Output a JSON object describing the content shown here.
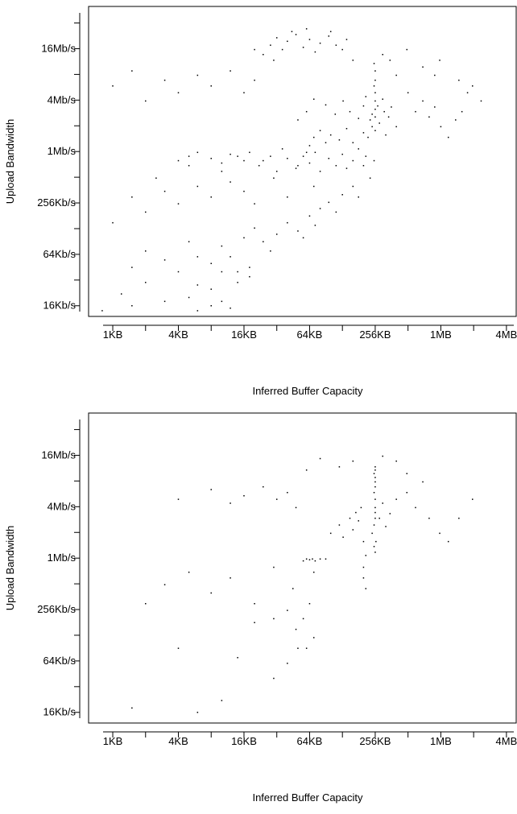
{
  "chart_data": [
    {
      "type": "scatter",
      "title": "",
      "xlabel": "Inferred Buffer Capacity",
      "ylabel": "Upload Bandwidth",
      "x_scale": "log2",
      "y_scale": "log2",
      "x_tick_labels": [
        "1KB",
        "4KB",
        "16KB",
        "64KB",
        "256KB",
        "1MB",
        "4MB"
      ],
      "y_tick_labels": [
        "16Kb/s",
        "64Kb/s",
        "256Kb/s",
        "1Mb/s",
        "4Mb/s",
        "16Mb/s"
      ],
      "xlim_kb": [
        0.6,
        5120
      ],
      "ylim_kbps": [
        12,
        51200
      ],
      "grid": false,
      "point_color": "#000000",
      "points_kb_kbps": [
        [
          0.8,
          14
        ],
        [
          1.2,
          22
        ],
        [
          1.5,
          16
        ],
        [
          2,
          30
        ],
        [
          3,
          18
        ],
        [
          5,
          20
        ],
        [
          6,
          14
        ],
        [
          8,
          16
        ],
        [
          10,
          18
        ],
        [
          12,
          15
        ],
        [
          1.5,
          45
        ],
        [
          2,
          70
        ],
        [
          3,
          55
        ],
        [
          4,
          40
        ],
        [
          5,
          90
        ],
        [
          6,
          60
        ],
        [
          8,
          50
        ],
        [
          10,
          80
        ],
        [
          14,
          40
        ],
        [
          18,
          35
        ],
        [
          1,
          150
        ],
        [
          1.5,
          300
        ],
        [
          2,
          200
        ],
        [
          2.5,
          500
        ],
        [
          3,
          350
        ],
        [
          4,
          250
        ],
        [
          5,
          700
        ],
        [
          6,
          400
        ],
        [
          8,
          300
        ],
        [
          10,
          600
        ],
        [
          12,
          450
        ],
        [
          14,
          900
        ],
        [
          16,
          350
        ],
        [
          20,
          250
        ],
        [
          24,
          800
        ],
        [
          30,
          500
        ],
        [
          40,
          300
        ],
        [
          50,
          700
        ],
        [
          60,
          1000
        ],
        [
          70,
          400
        ],
        [
          4,
          800
        ],
        [
          5,
          900
        ],
        [
          6,
          1000
        ],
        [
          8,
          850
        ],
        [
          10,
          750
        ],
        [
          12,
          950
        ],
        [
          16,
          800
        ],
        [
          18,
          1000
        ],
        [
          22,
          700
        ],
        [
          28,
          900
        ],
        [
          32,
          600
        ],
        [
          36,
          1100
        ],
        [
          40,
          850
        ],
        [
          48,
          650
        ],
        [
          56,
          900
        ],
        [
          64,
          750
        ],
        [
          72,
          1000
        ],
        [
          80,
          600
        ],
        [
          96,
          850
        ],
        [
          112,
          700
        ],
        [
          128,
          950
        ],
        [
          140,
          650
        ],
        [
          160,
          800
        ],
        [
          180,
          1100
        ],
        [
          200,
          700
        ],
        [
          210,
          900
        ],
        [
          230,
          500
        ],
        [
          250,
          800
        ],
        [
          160,
          400
        ],
        [
          180,
          300
        ],
        [
          64,
          1200
        ],
        [
          70,
          1500
        ],
        [
          80,
          1800
        ],
        [
          90,
          1300
        ],
        [
          100,
          1600
        ],
        [
          120,
          1400
        ],
        [
          140,
          1900
        ],
        [
          160,
          1300
        ],
        [
          200,
          1700
        ],
        [
          220,
          1500
        ],
        [
          240,
          2000
        ],
        [
          256,
          1800
        ],
        [
          256,
          2600
        ],
        [
          256,
          3200
        ],
        [
          256,
          4000
        ],
        [
          256,
          5000
        ],
        [
          250,
          6000
        ],
        [
          256,
          7000
        ],
        [
          256,
          9000
        ],
        [
          250,
          11000
        ],
        [
          230,
          2400
        ],
        [
          240,
          2800
        ],
        [
          270,
          3500
        ],
        [
          280,
          2200
        ],
        [
          300,
          4200
        ],
        [
          310,
          3000
        ],
        [
          320,
          1600
        ],
        [
          340,
          2600
        ],
        [
          360,
          3400
        ],
        [
          400,
          2000
        ],
        [
          180,
          2500
        ],
        [
          200,
          3500
        ],
        [
          210,
          4500
        ],
        [
          150,
          3000
        ],
        [
          130,
          4000
        ],
        [
          110,
          2800
        ],
        [
          90,
          3600
        ],
        [
          70,
          4200
        ],
        [
          60,
          3000
        ],
        [
          50,
          2400
        ],
        [
          24,
          14000
        ],
        [
          28,
          18000
        ],
        [
          32,
          22000
        ],
        [
          36,
          16000
        ],
        [
          40,
          20000
        ],
        [
          48,
          24000
        ],
        [
          56,
          17000
        ],
        [
          64,
          21000
        ],
        [
          72,
          15000
        ],
        [
          80,
          19000
        ],
        [
          96,
          23000
        ],
        [
          112,
          18000
        ],
        [
          128,
          16000
        ],
        [
          140,
          21000
        ],
        [
          20,
          16000
        ],
        [
          44,
          26000
        ],
        [
          60,
          28000
        ],
        [
          100,
          26000
        ],
        [
          160,
          12000
        ],
        [
          30,
          12000
        ],
        [
          1,
          6000
        ],
        [
          1.5,
          9000
        ],
        [
          2,
          4000
        ],
        [
          3,
          7000
        ],
        [
          4,
          5000
        ],
        [
          6,
          8000
        ],
        [
          8,
          6000
        ],
        [
          12,
          9000
        ],
        [
          16,
          5000
        ],
        [
          20,
          7000
        ],
        [
          512,
          5000
        ],
        [
          600,
          3000
        ],
        [
          700,
          4000
        ],
        [
          800,
          2600
        ],
        [
          900,
          3400
        ],
        [
          1024,
          2000
        ],
        [
          1200,
          1500
        ],
        [
          1400,
          2400
        ],
        [
          1600,
          3000
        ],
        [
          1800,
          5000
        ],
        [
          2000,
          6000
        ],
        [
          2400,
          4000
        ],
        [
          1000,
          12000
        ],
        [
          700,
          10000
        ],
        [
          500,
          16000
        ],
        [
          400,
          8000
        ],
        [
          350,
          12000
        ],
        [
          300,
          14000
        ],
        [
          900,
          8000
        ],
        [
          1500,
          7000
        ],
        [
          40,
          150
        ],
        [
          50,
          120
        ],
        [
          56,
          100
        ],
        [
          64,
          180
        ],
        [
          72,
          140
        ],
        [
          80,
          220
        ],
        [
          96,
          260
        ],
        [
          112,
          200
        ],
        [
          128,
          320
        ],
        [
          16,
          100
        ],
        [
          20,
          130
        ],
        [
          24,
          90
        ],
        [
          28,
          70
        ],
        [
          32,
          110
        ],
        [
          12,
          60
        ],
        [
          10,
          40
        ],
        [
          8,
          25
        ],
        [
          14,
          30
        ],
        [
          18,
          45
        ],
        [
          6,
          28
        ]
      ]
    },
    {
      "type": "scatter",
      "title": "",
      "xlabel": "Inferred Buffer Capacity",
      "ylabel": "Upload Bandwidth",
      "x_scale": "log2",
      "y_scale": "log2",
      "x_tick_labels": [
        "1KB",
        "4KB",
        "16KB",
        "64KB",
        "256KB",
        "1MB",
        "4MB"
      ],
      "y_tick_labels": [
        "16Kb/s",
        "64Kb/s",
        "256Kb/s",
        "1Mb/s",
        "4Mb/s",
        "16Mb/s"
      ],
      "xlim_kb": [
        0.6,
        5120
      ],
      "ylim_kbps": [
        12,
        51200
      ],
      "grid": false,
      "point_color": "#000000",
      "points_kb_kbps": [
        [
          1.5,
          18
        ],
        [
          6,
          16
        ],
        [
          10,
          22
        ],
        [
          4,
          90
        ],
        [
          14,
          70
        ],
        [
          30,
          40
        ],
        [
          40,
          60
        ],
        [
          50,
          90
        ],
        [
          2,
          300
        ],
        [
          3,
          500
        ],
        [
          5,
          700
        ],
        [
          8,
          400
        ],
        [
          12,
          600
        ],
        [
          20,
          300
        ],
        [
          30,
          800
        ],
        [
          45,
          450
        ],
        [
          56,
          950
        ],
        [
          60,
          1000
        ],
        [
          64,
          980
        ],
        [
          68,
          1000
        ],
        [
          72,
          950
        ],
        [
          80,
          1000
        ],
        [
          90,
          1000
        ],
        [
          70,
          700
        ],
        [
          100,
          2000
        ],
        [
          120,
          2500
        ],
        [
          130,
          1800
        ],
        [
          150,
          3000
        ],
        [
          160,
          2200
        ],
        [
          170,
          3500
        ],
        [
          180,
          2800
        ],
        [
          190,
          4000
        ],
        [
          200,
          1600
        ],
        [
          210,
          1100
        ],
        [
          200,
          800
        ],
        [
          200,
          600
        ],
        [
          210,
          450
        ],
        [
          240,
          2000
        ],
        [
          250,
          2500
        ],
        [
          256,
          3000
        ],
        [
          256,
          3500
        ],
        [
          256,
          4000
        ],
        [
          256,
          5000
        ],
        [
          250,
          6000
        ],
        [
          256,
          7000
        ],
        [
          256,
          8000
        ],
        [
          256,
          9000
        ],
        [
          250,
          10000
        ],
        [
          256,
          11000
        ],
        [
          256,
          12000
        ],
        [
          260,
          1600
        ],
        [
          250,
          1400
        ],
        [
          256,
          1200
        ],
        [
          280,
          3000
        ],
        [
          300,
          4500
        ],
        [
          320,
          2400
        ],
        [
          350,
          3400
        ],
        [
          400,
          5000
        ],
        [
          500,
          6000
        ],
        [
          600,
          4000
        ],
        [
          800,
          3000
        ],
        [
          1000,
          2000
        ],
        [
          1200,
          1600
        ],
        [
          1500,
          3000
        ],
        [
          2000,
          5000
        ],
        [
          700,
          8000
        ],
        [
          500,
          10000
        ],
        [
          400,
          14000
        ],
        [
          300,
          16000
        ],
        [
          32,
          5000
        ],
        [
          40,
          6000
        ],
        [
          48,
          4000
        ],
        [
          24,
          7000
        ],
        [
          16,
          5500
        ],
        [
          12,
          4500
        ],
        [
          8,
          6500
        ],
        [
          4,
          5000
        ],
        [
          64,
          300
        ],
        [
          56,
          200
        ],
        [
          48,
          150
        ],
        [
          70,
          120
        ],
        [
          60,
          90
        ],
        [
          40,
          250
        ],
        [
          30,
          200
        ],
        [
          20,
          180
        ],
        [
          80,
          15000
        ],
        [
          120,
          12000
        ],
        [
          160,
          14000
        ],
        [
          60,
          11000
        ]
      ]
    }
  ]
}
